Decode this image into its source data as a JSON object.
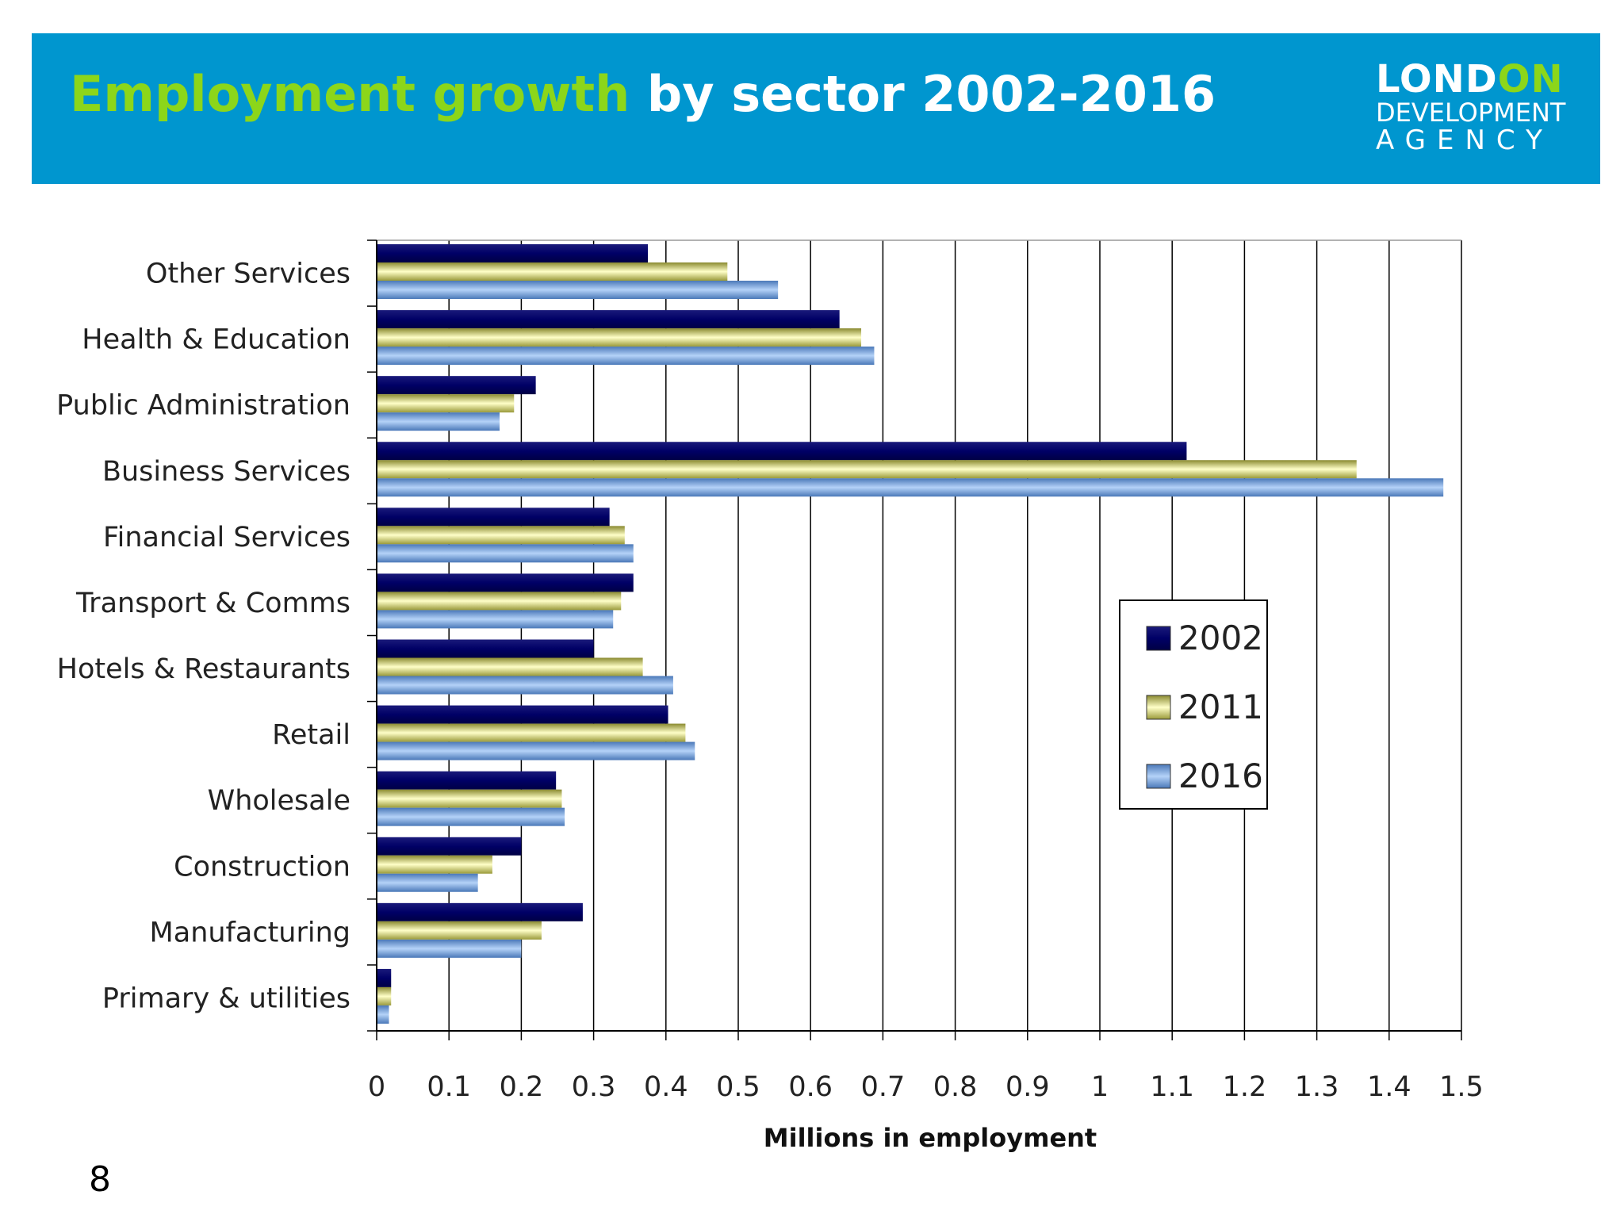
{
  "header": {
    "title_part1": "Employment growth",
    "title_part2": "by sector 2002-2016",
    "logo": {
      "line1_a": "LOND",
      "line1_b": "ON",
      "line2": "DEVELOPMENT",
      "line3": "AGENCY"
    }
  },
  "footer": {
    "char": "8"
  },
  "colors": {
    "banner": "#0096cf",
    "title_accent": "#8cd61a",
    "s2002": "#000066",
    "s2011": "#e6e68c",
    "s2016": "#7aaae6"
  },
  "chart_data": {
    "type": "bar",
    "orientation": "horizontal",
    "title": "",
    "xlabel": "Millions in employment",
    "ylabel": "",
    "xlim": [
      0,
      1.5
    ],
    "xticks": [
      "0",
      "0.1",
      "0.2",
      "0.3",
      "0.4",
      "0.5",
      "0.6",
      "0.7",
      "0.8",
      "0.9",
      "1",
      "1.1",
      "1.2",
      "1.3",
      "1.4",
      "1.5"
    ],
    "grid": "vertical",
    "legend_position": "center-right",
    "categories": [
      "Other Services",
      "Health & Education",
      "Public Administration",
      "Business Services",
      "Financial Services",
      "Transport & Comms",
      "Hotels & Restaurants",
      "Retail",
      "Wholesale",
      "Construction",
      "Manufacturing",
      "Primary & utilities"
    ],
    "series": [
      {
        "name": "2002",
        "color": "#000066",
        "values": [
          0.375,
          0.64,
          0.22,
          1.12,
          0.322,
          0.355,
          0.3,
          0.403,
          0.248,
          0.2,
          0.285,
          0.02
        ]
      },
      {
        "name": "2011",
        "color": "#e6e68c",
        "values": [
          0.485,
          0.67,
          0.19,
          1.355,
          0.343,
          0.338,
          0.368,
          0.427,
          0.256,
          0.16,
          0.228,
          0.02
        ]
      },
      {
        "name": "2016",
        "color": "#7aaae6",
        "values": [
          0.555,
          0.688,
          0.17,
          1.475,
          0.355,
          0.327,
          0.41,
          0.44,
          0.26,
          0.14,
          0.2,
          0.017
        ]
      }
    ]
  }
}
